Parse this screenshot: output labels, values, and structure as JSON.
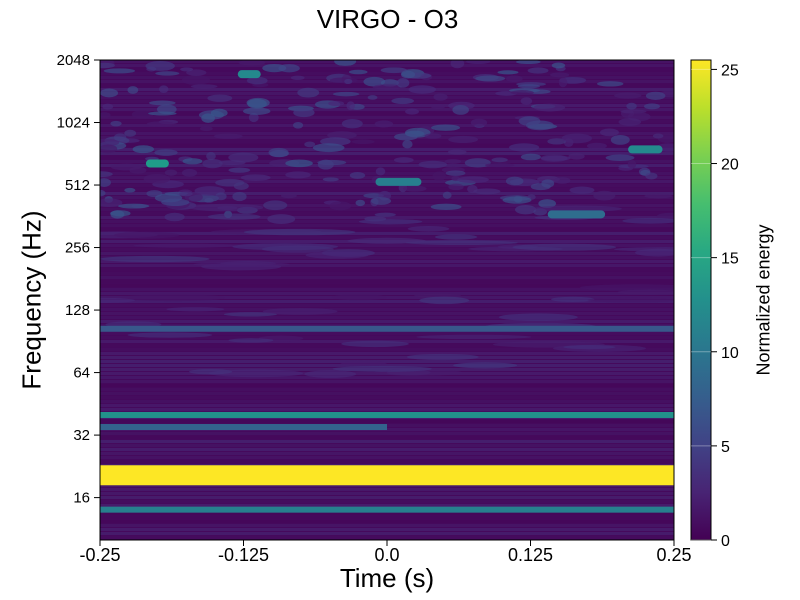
{
  "chart_data": {
    "type": "heatmap",
    "title": "VIRGO - O3",
    "xlabel": "Time (s)",
    "ylabel": "Frequency (Hz)",
    "x_ticks": [
      "-0.25",
      "-0.125",
      "0.0",
      "0.125",
      "0.25"
    ],
    "xlim": [
      -0.25,
      0.25
    ],
    "y_scale": "log2",
    "y_ticks": [
      "16",
      "32",
      "64",
      "128",
      "256",
      "512",
      "1024",
      "2048"
    ],
    "ylim_hz": [
      10,
      2048
    ],
    "colormap": "viridis",
    "colorbar": {
      "label": "Normalized energy",
      "ticks": [
        "0",
        "5",
        "10",
        "15",
        "20",
        "25"
      ],
      "range": [
        0,
        25.5
      ]
    },
    "features": [
      {
        "freq_hz": 20.5,
        "t_start": -0.25,
        "t_end": 0.25,
        "energy": 25.5
      },
      {
        "freq_hz": 14,
        "t_start": -0.25,
        "t_end": 0.25,
        "energy": 11
      },
      {
        "freq_hz": 40,
        "t_start": -0.25,
        "t_end": 0.25,
        "energy": 13
      },
      {
        "freq_hz": 35,
        "t_start": -0.25,
        "t_end": 0.0,
        "energy": 8
      },
      {
        "freq_hz": 104,
        "t_start": -0.25,
        "t_end": 0.25,
        "energy": 7
      },
      {
        "freq_hz": 650,
        "t_start": -0.21,
        "t_end": -0.19,
        "energy": 14
      },
      {
        "freq_hz": 1750,
        "t_start": -0.13,
        "t_end": -0.11,
        "energy": 12
      },
      {
        "freq_hz": 530,
        "t_start": -0.01,
        "t_end": 0.03,
        "energy": 11
      },
      {
        "freq_hz": 370,
        "t_start": 0.14,
        "t_end": 0.19,
        "energy": 9
      },
      {
        "freq_hz": 760,
        "t_start": 0.21,
        "t_end": 0.24,
        "energy": 12
      }
    ],
    "grid": false,
    "legend": "none"
  }
}
